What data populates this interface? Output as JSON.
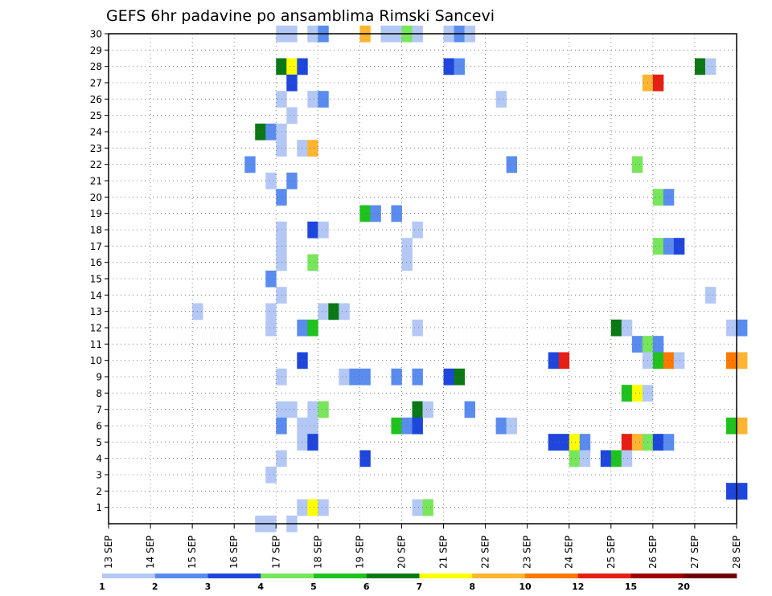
{
  "chart_data": {
    "type": "heatmap",
    "title": "GEFS 6hr padavine po ansamblima Rimski Sancevi",
    "x": {
      "tick_labels": [
        "13 SEP",
        "14 SEP",
        "15 SEP",
        "16 SEP",
        "17 SEP",
        "18 SEP",
        "19 SEP",
        "20 SEP",
        "21 SEP",
        "22 SEP",
        "23 SEP",
        "24 SEP",
        "25 SEP",
        "26 SEP",
        "27 SEP",
        "28 SEP"
      ],
      "slots_per_day": 4,
      "range_days": [
        0,
        15
      ]
    },
    "y": {
      "tick_labels": [
        "1",
        "2",
        "3",
        "4",
        "5",
        "6",
        "7",
        "8",
        "9",
        "10",
        "11",
        "12",
        "13",
        "14",
        "15",
        "16",
        "17",
        "18",
        "19",
        "20",
        "21",
        "22",
        "23",
        "24",
        "25",
        "26",
        "27",
        "28",
        "29",
        "30"
      ],
      "range": [
        0,
        30
      ]
    },
    "grid": true,
    "colorbar": {
      "placement": "bottom",
      "tick_labels": [
        "1",
        "2",
        "3",
        "4",
        "5",
        "6",
        "7",
        "8",
        "10",
        "12",
        "15",
        "20"
      ],
      "colors": [
        "#b4c8f6",
        "#5a8cf0",
        "#1e46dc",
        "#78e65a",
        "#1ec31e",
        "#0a7814",
        "#ffff00",
        "#ffb432",
        "#ff7800",
        "#e61e14",
        "#a00000",
        "#6e0000"
      ]
    },
    "cells_note": "each cell = [member, slot, value_mm]; slot counted in 6h steps from 13 SEP",
    "cells": [
      [
        30,
        16,
        1
      ],
      [
        30,
        17,
        1
      ],
      [
        30,
        19,
        1
      ],
      [
        30,
        20,
        2
      ],
      [
        30,
        24,
        9
      ],
      [
        30,
        26,
        1
      ],
      [
        30,
        27,
        1
      ],
      [
        30,
        28,
        4
      ],
      [
        30,
        29,
        1
      ],
      [
        30,
        32,
        1
      ],
      [
        30,
        33,
        2
      ],
      [
        30,
        34,
        1
      ],
      [
        28,
        16,
        6
      ],
      [
        28,
        17,
        7
      ],
      [
        28,
        18,
        3
      ],
      [
        28,
        32,
        3
      ],
      [
        28,
        33,
        2
      ],
      [
        28,
        56,
        6
      ],
      [
        28,
        57,
        1
      ],
      [
        27,
        17,
        3
      ],
      [
        27,
        51,
        9
      ],
      [
        27,
        52,
        12
      ],
      [
        26,
        16,
        1
      ],
      [
        26,
        19,
        1
      ],
      [
        26,
        20,
        2
      ],
      [
        26,
        37,
        1
      ],
      [
        25,
        17,
        1
      ],
      [
        24,
        14,
        6
      ],
      [
        24,
        15,
        2
      ],
      [
        24,
        16,
        1
      ],
      [
        23,
        16,
        1
      ],
      [
        23,
        18,
        1
      ],
      [
        23,
        19,
        9
      ],
      [
        22,
        13,
        2
      ],
      [
        22,
        38,
        2
      ],
      [
        22,
        50,
        4
      ],
      [
        21,
        15,
        1
      ],
      [
        21,
        17,
        2
      ],
      [
        20,
        16,
        2
      ],
      [
        20,
        52,
        4
      ],
      [
        20,
        53,
        2
      ],
      [
        19,
        24,
        5
      ],
      [
        19,
        25,
        2
      ],
      [
        19,
        27,
        2
      ],
      [
        18,
        16,
        1
      ],
      [
        18,
        19,
        3
      ],
      [
        18,
        20,
        1
      ],
      [
        18,
        29,
        1
      ],
      [
        17,
        16,
        1
      ],
      [
        17,
        28,
        1
      ],
      [
        17,
        52,
        4
      ],
      [
        17,
        53,
        2
      ],
      [
        17,
        54,
        3
      ],
      [
        16,
        16,
        1
      ],
      [
        16,
        19,
        4
      ],
      [
        16,
        28,
        1
      ],
      [
        15,
        15,
        2
      ],
      [
        14,
        16,
        1
      ],
      [
        14,
        57,
        1
      ],
      [
        13,
        8,
        1
      ],
      [
        13,
        15,
        1
      ],
      [
        13,
        20,
        1
      ],
      [
        13,
        21,
        6
      ],
      [
        13,
        22,
        1
      ],
      [
        12,
        15,
        1
      ],
      [
        12,
        18,
        2
      ],
      [
        12,
        19,
        5
      ],
      [
        12,
        29,
        1
      ],
      [
        12,
        48,
        6
      ],
      [
        12,
        49,
        1
      ],
      [
        12,
        59,
        1
      ],
      [
        12,
        60,
        2
      ],
      [
        11,
        50,
        2
      ],
      [
        11,
        51,
        4
      ],
      [
        11,
        52,
        2
      ],
      [
        10,
        18,
        3
      ],
      [
        10,
        42,
        3
      ],
      [
        10,
        43,
        12
      ],
      [
        10,
        51,
        1
      ],
      [
        10,
        52,
        5
      ],
      [
        10,
        53,
        10
      ],
      [
        10,
        54,
        1
      ],
      [
        10,
        59,
        10
      ],
      [
        10,
        60,
        8
      ],
      [
        9,
        16,
        1
      ],
      [
        9,
        22,
        1
      ],
      [
        9,
        23,
        2
      ],
      [
        9,
        24,
        2
      ],
      [
        9,
        27,
        2
      ],
      [
        9,
        29,
        2
      ],
      [
        9,
        32,
        3
      ],
      [
        9,
        33,
        6
      ],
      [
        8,
        49,
        5
      ],
      [
        8,
        50,
        7
      ],
      [
        8,
        51,
        1
      ],
      [
        7,
        16,
        1
      ],
      [
        7,
        17,
        1
      ],
      [
        7,
        19,
        1
      ],
      [
        7,
        20,
        4
      ],
      [
        7,
        29,
        6
      ],
      [
        7,
        30,
        1
      ],
      [
        7,
        34,
        2
      ],
      [
        6,
        16,
        2
      ],
      [
        6,
        18,
        1
      ],
      [
        6,
        19,
        1
      ],
      [
        6,
        27,
        5
      ],
      [
        6,
        28,
        2
      ],
      [
        6,
        29,
        3
      ],
      [
        6,
        37,
        2
      ],
      [
        6,
        38,
        1
      ],
      [
        6,
        59,
        5
      ],
      [
        6,
        60,
        8
      ],
      [
        5,
        18,
        1
      ],
      [
        5,
        19,
        3
      ],
      [
        5,
        42,
        3
      ],
      [
        5,
        43,
        3
      ],
      [
        5,
        44,
        7
      ],
      [
        5,
        45,
        2
      ],
      [
        5,
        49,
        12
      ],
      [
        5,
        50,
        8
      ],
      [
        5,
        51,
        4
      ],
      [
        5,
        52,
        3
      ],
      [
        5,
        53,
        2
      ],
      [
        4,
        16,
        1
      ],
      [
        4,
        24,
        3
      ],
      [
        4,
        44,
        4
      ],
      [
        4,
        45,
        1
      ],
      [
        4,
        47,
        3
      ],
      [
        4,
        48,
        5
      ],
      [
        4,
        49,
        1
      ],
      [
        3,
        15,
        1
      ],
      [
        2,
        59,
        3
      ],
      [
        2,
        60,
        3
      ],
      [
        1,
        18,
        1
      ],
      [
        1,
        19,
        7
      ],
      [
        1,
        20,
        1
      ],
      [
        1,
        29,
        1
      ],
      [
        1,
        30,
        4
      ],
      [
        0,
        14,
        1
      ],
      [
        0,
        15,
        1
      ],
      [
        0,
        17,
        1
      ]
    ]
  }
}
